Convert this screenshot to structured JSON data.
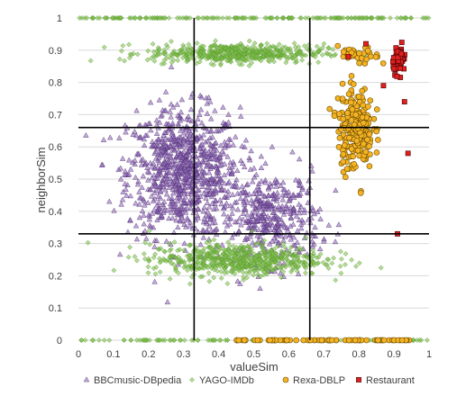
{
  "chart_data": {
    "type": "scatter",
    "title": "",
    "xlabel": "valueSim",
    "ylabel": "neighborSim",
    "xlim": [
      0,
      1
    ],
    "ylim": [
      0,
      1
    ],
    "x_ticks": [
      "0",
      "0.1",
      "0.2",
      "0.3",
      "0.4",
      "0.5",
      "0.6",
      "0.7",
      "0.8",
      "0.9",
      "1"
    ],
    "y_ticks": [
      "0",
      "0.1",
      "0.2",
      "0.3",
      "0.4",
      "0.5",
      "0.6",
      "0.7",
      "0.8",
      "0.9",
      "1"
    ],
    "grid": "horizontal light gridlines",
    "reference_lines": {
      "x": [
        0.33,
        0.66
      ],
      "y": [
        0.33,
        0.66
      ]
    },
    "legend_position": "bottom",
    "series": [
      {
        "name": "BBCmusic-DBpedia",
        "marker": "triangle",
        "color": "#8e63b8",
        "clusters": [
          {
            "x_center": 0.3,
            "y_center": 0.52,
            "x_spread": 0.16,
            "y_spread": 0.2,
            "count": 900
          },
          {
            "x_center": 0.55,
            "y_center": 0.38,
            "x_spread": 0.14,
            "y_spread": 0.14,
            "count": 400
          }
        ]
      },
      {
        "name": "YAGO-IMDb",
        "marker": "diamond",
        "color": "#77c043",
        "clusters": [
          {
            "x_center": 0.45,
            "y_center": 0.89,
            "x_spread": 0.25,
            "y_spread": 0.03,
            "count": 500
          },
          {
            "x_center": 0.45,
            "y_center": 0.25,
            "x_spread": 0.25,
            "y_spread": 0.05,
            "count": 600
          },
          {
            "x_center": 0.5,
            "y_center": 1.0,
            "x_spread": 0.5,
            "y_spread": 0.0,
            "count": 180
          },
          {
            "x_center": 0.5,
            "y_center": 0.0,
            "x_spread": 0.5,
            "y_spread": 0.0,
            "count": 120
          }
        ]
      },
      {
        "name": "Rexa-DBLP",
        "marker": "circle",
        "color": "#f5b324",
        "clusters": [
          {
            "x_center": 0.79,
            "y_center": 0.66,
            "x_spread": 0.05,
            "y_spread": 0.13,
            "count": 220
          },
          {
            "x_center": 0.8,
            "y_center": 0.88,
            "x_spread": 0.06,
            "y_spread": 0.03,
            "count": 30
          },
          {
            "x_center": 0.7,
            "y_center": 0.0,
            "x_spread": 0.25,
            "y_spread": 0.0,
            "count": 80
          }
        ]
      },
      {
        "name": "Restaurant",
        "marker": "square",
        "color": "#e02020",
        "clusters": [
          {
            "x_center": 0.915,
            "y_center": 0.87,
            "x_spread": 0.018,
            "y_spread": 0.04,
            "count": 60
          }
        ],
        "points": [
          {
            "x": 0.87,
            "y": 0.79
          },
          {
            "x": 0.93,
            "y": 0.74
          },
          {
            "x": 0.94,
            "y": 0.58
          },
          {
            "x": 0.91,
            "y": 0.33
          },
          {
            "x": 0.82,
            "y": 0.92
          },
          {
            "x": 0.77,
            "y": 0.88
          }
        ]
      }
    ]
  }
}
